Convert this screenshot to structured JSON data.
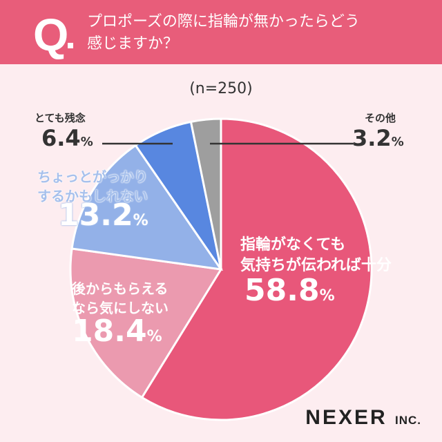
{
  "header": {
    "q": "Q",
    "question_line1": "プロポーズの際に指輪が無かったらどう",
    "question_line2": "感じますか？"
  },
  "sample": "(n=250)",
  "logo": {
    "name": "NEXER",
    "suffix": "INC."
  },
  "colors": {
    "header": "#e85d7a",
    "background": "#fdedf0"
  },
  "chart_data": {
    "type": "pie",
    "start": "12 o'clock",
    "direction": "clockwise",
    "slices": [
      {
        "label": "指輪がなくても気持ちが伝われば十分",
        "value": 58.8,
        "l1": "指輪がなくても",
        "l2": "気持ちが伝われば十分",
        "pct": "58.8",
        "color": "#e8577a"
      },
      {
        "label": "後からもらえるなら気にしない",
        "value": 18.4,
        "l1": "後からもらえる",
        "l2": "なら気にしない",
        "pct": "18.4",
        "color": "#eb9aaf"
      },
      {
        "label": "ちょっとがっかりするかもしれない",
        "value": 13.2,
        "l1": "ちょっとがっかり",
        "l2": "するかもしれない",
        "pct": "13.2",
        "color": "#93b1e8"
      },
      {
        "label": "とても残念",
        "value": 6.4,
        "l1": "とても残念",
        "pct": "6.4",
        "color": "#5887e0"
      },
      {
        "label": "その他",
        "value": 3.2,
        "l1": "その他",
        "pct": "3.2",
        "color": "#9e9e9e"
      }
    ],
    "unit": "%"
  }
}
